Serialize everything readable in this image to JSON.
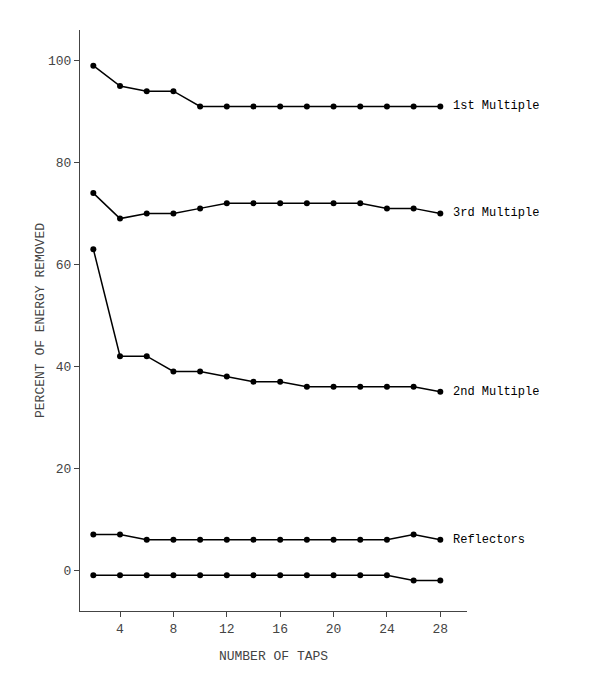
{
  "chart_data": {
    "type": "line",
    "x_label": "NUMBER OF TAPS",
    "y_label": "PERCENT OF ENERGY REMOVED",
    "x": [
      2,
      4,
      6,
      8,
      10,
      12,
      14,
      16,
      18,
      20,
      22,
      24,
      26,
      28
    ],
    "series": [
      {
        "name": "1st Multiple",
        "color": "#000000",
        "marker": "circle",
        "values": [
          99,
          95,
          94,
          94,
          91,
          91,
          91,
          91,
          91,
          91,
          91,
          91,
          91,
          91
        ]
      },
      {
        "name": "3rd Multiple",
        "color": "#000000",
        "marker": "circle",
        "values": [
          74,
          69,
          70,
          70,
          71,
          72,
          72,
          72,
          72,
          72,
          72,
          71,
          71,
          70
        ]
      },
      {
        "name": "2nd Multiple",
        "color": "#000000",
        "marker": "circle",
        "values": [
          63,
          42,
          42,
          39,
          39,
          38,
          37,
          37,
          36,
          36,
          36,
          36,
          36,
          35
        ]
      },
      {
        "name": "Reflectors",
        "color": "#000000",
        "marker": "circle",
        "values": [
          7,
          7,
          6,
          6,
          6,
          6,
          6,
          6,
          6,
          6,
          6,
          6,
          7,
          6
        ]
      },
      {
        "color": "#000000",
        "marker": "circle",
        "values": [
          -1,
          -1,
          -1,
          -1,
          -1,
          -1,
          -1,
          -1,
          -1,
          -1,
          -1,
          -1,
          -2,
          -2
        ]
      }
    ],
    "annotations": [
      {
        "text": "1st Multiple",
        "x": 28.8,
        "y": 91
      },
      {
        "text": "3rd Multiple",
        "x": 28.8,
        "y": 70
      },
      {
        "text": "2nd Multiple",
        "x": 28.8,
        "y": 35
      },
      {
        "text": "Reflectors",
        "x": 28.8,
        "y": 6
      }
    ],
    "xlim": [
      1,
      30
    ],
    "ylim": [
      -8,
      106
    ],
    "xticks": [
      4,
      8,
      12,
      16,
      20,
      24,
      28
    ],
    "yticks": [
      0,
      20,
      40,
      60,
      80,
      100
    ],
    "grid": false
  }
}
